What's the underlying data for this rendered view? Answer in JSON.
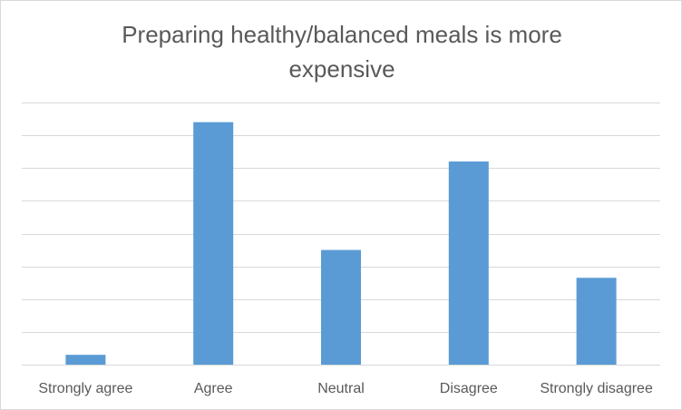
{
  "chart_data": {
    "type": "bar",
    "title": "Preparing healthy/balanced meals is more expensive",
    "title_lines": [
      "Preparing healthy/balanced  meals is more",
      "expensive"
    ],
    "categories": [
      "Strongly agree",
      "Agree",
      "Neutral",
      "Disagree",
      "Strongly disagree"
    ],
    "values": [
      3,
      74,
      35,
      62,
      26.5
    ],
    "xlabel": "",
    "ylabel": "",
    "ylim": [
      0,
      80
    ],
    "grid": true,
    "legend": "none",
    "bar_color": "#5b9bd5",
    "grid_color": "#d9d9d9",
    "text_color": "#595959"
  }
}
